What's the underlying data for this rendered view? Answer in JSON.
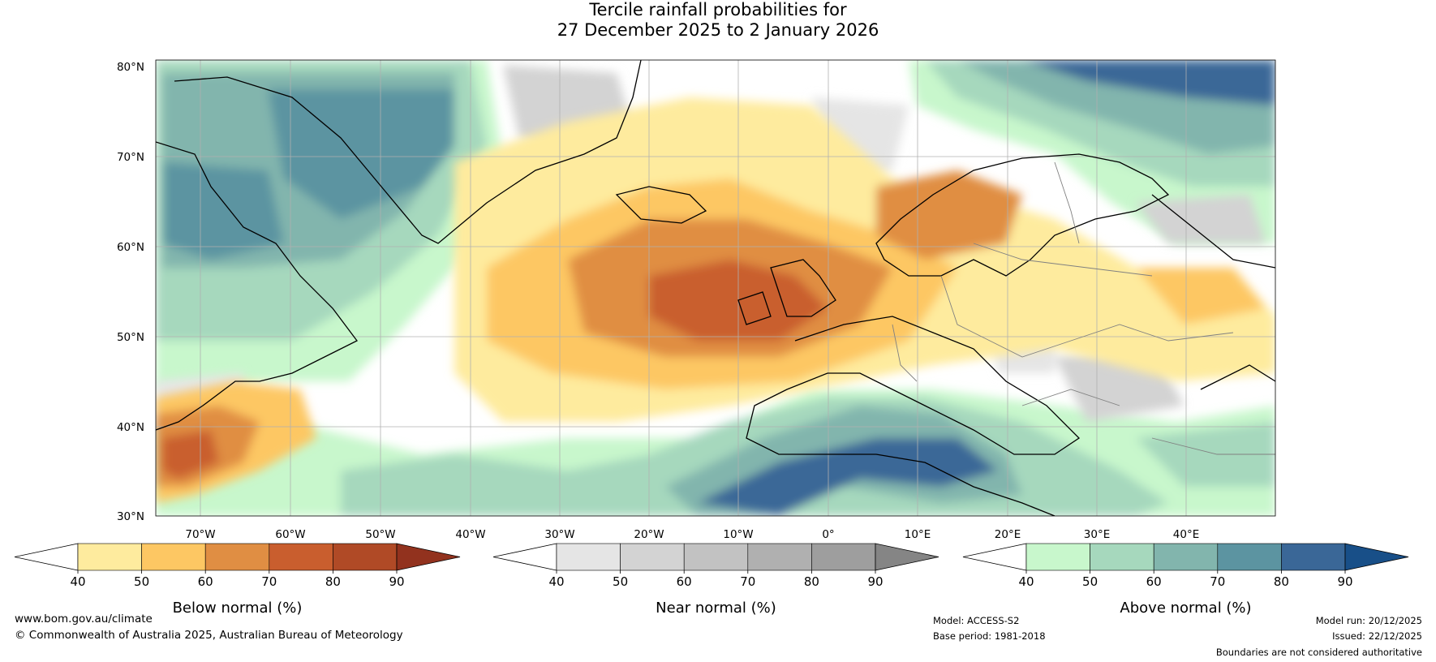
{
  "title": {
    "line1": "Tercile rainfall probabilities for",
    "line2": "27 December 2025 to 2 January 2026"
  },
  "map": {
    "lat_labels": [
      "80°N",
      "70°N",
      "60°N",
      "50°N",
      "40°N",
      "30°N"
    ],
    "lon_labels": [
      "70°W",
      "60°W",
      "50°W",
      "40°W",
      "30°W",
      "20°W",
      "10°W",
      "0°",
      "10°E",
      "20°E",
      "30°E",
      "40°E"
    ],
    "colors": {
      "ocean_white": "#ffffff",
      "coast": "#000000",
      "border": "#808080",
      "grid": "#b0b0b0"
    }
  },
  "colorbars": [
    {
      "id": "below",
      "title": "Below normal (%)",
      "ticks": [
        "40",
        "50",
        "60",
        "70",
        "80",
        "90"
      ],
      "colors": [
        "#ffffff",
        "#feeb9e",
        "#fdc763",
        "#e08e43",
        "#c95e2e",
        "#b04a26",
        "#92321e"
      ]
    },
    {
      "id": "near",
      "title": "Near normal (%)",
      "ticks": [
        "40",
        "50",
        "60",
        "70",
        "80",
        "90"
      ],
      "colors": [
        "#ffffff",
        "#e5e5e5",
        "#d3d3d3",
        "#c2c2c2",
        "#b0b0b0",
        "#9e9e9e",
        "#858585"
      ]
    },
    {
      "id": "above",
      "title": "Above normal (%)",
      "ticks": [
        "40",
        "50",
        "60",
        "70",
        "80",
        "90"
      ],
      "colors": [
        "#ffffff",
        "#c8f7cc",
        "#a6d8bd",
        "#82b5ad",
        "#5c94a1",
        "#3a6797",
        "#184f88"
      ]
    }
  ],
  "footer": {
    "url": "www.bom.gov.au/climate",
    "copyright": "© Commonwealth of Australia 2025, Australian Bureau of Meteorology",
    "model": "Model: ACCESS-S2",
    "base_period": "Base period: 1981-2018",
    "model_run": "Model run: 20/12/2025",
    "issued": "Issued: 22/12/2025",
    "disclaimer": "Boundaries are not considered authoritative"
  }
}
